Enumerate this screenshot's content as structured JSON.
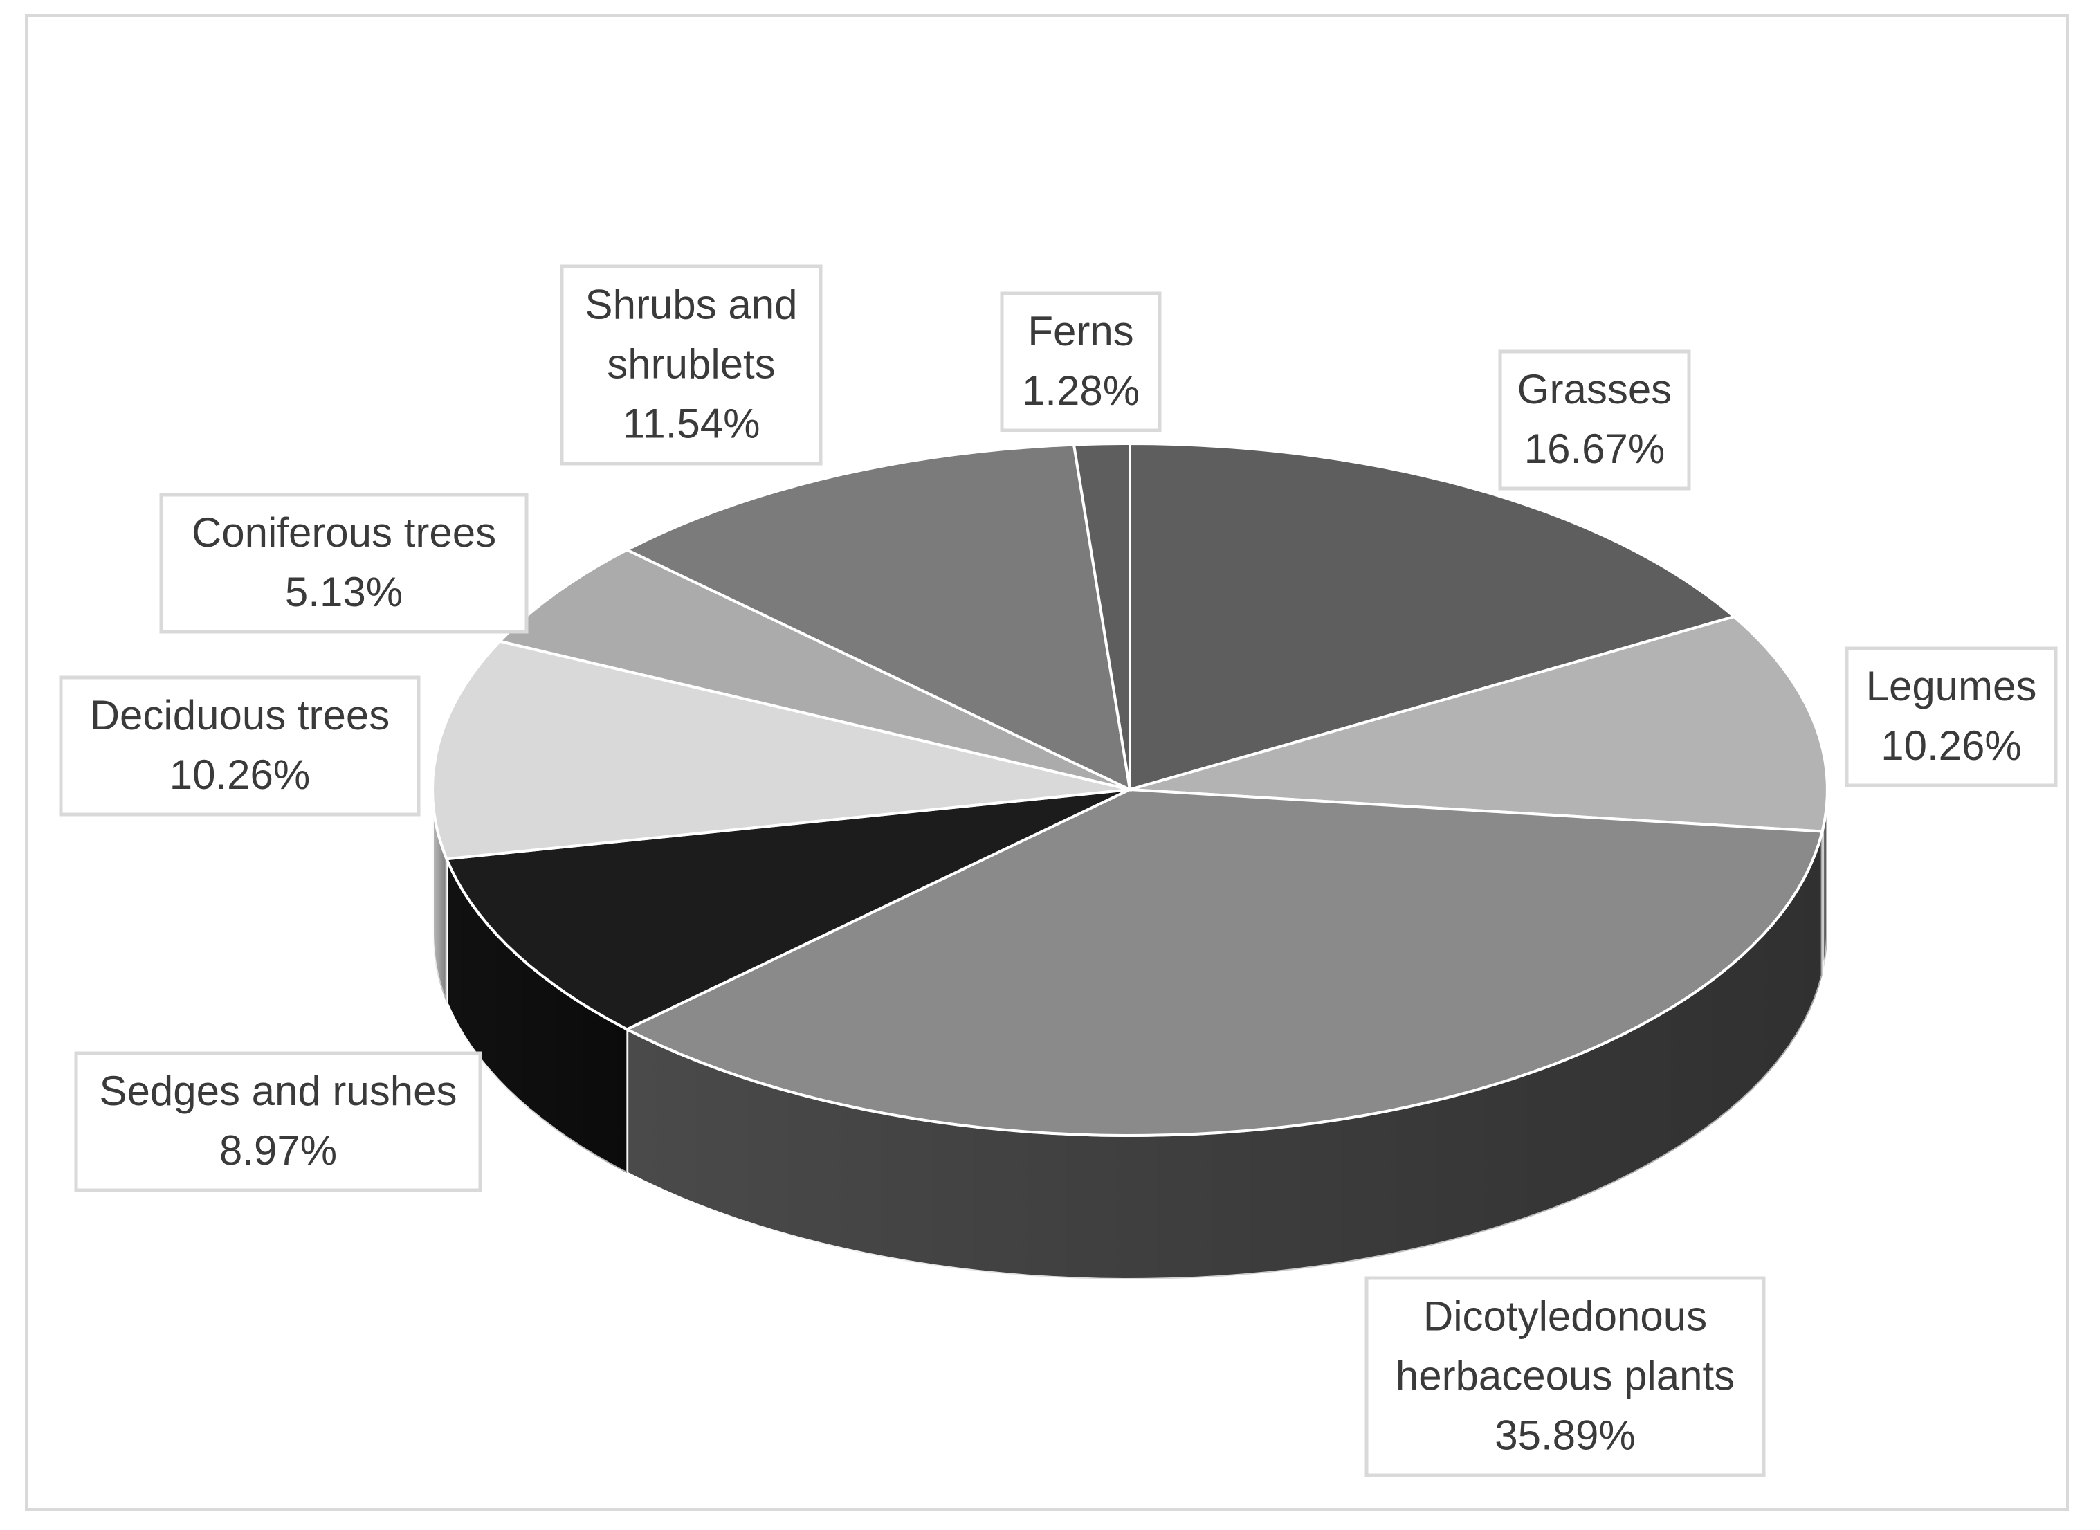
{
  "chart_data": {
    "type": "pie",
    "style": "3d",
    "legend": "none",
    "slices": [
      {
        "name": "Grasses",
        "value": 16.67,
        "label": "16.67%",
        "color": "#5e5e5e",
        "side": "#3c3c3c"
      },
      {
        "name": "Legumes",
        "value": 10.26,
        "label": "10.26%",
        "color": "#b3b3b3",
        "side": "#7a7a7a"
      },
      {
        "name": "Dicotyledonous herbaceous plants",
        "value": 35.89,
        "label": "35.89%",
        "color": "#8a8a8a",
        "side": "#4a4a4a"
      },
      {
        "name": "Sedges and rushes",
        "value": 8.97,
        "label": "8.97%",
        "color": "#1c1c1c",
        "side": "#111111"
      },
      {
        "name": "Deciduous trees",
        "value": 10.26,
        "label": "10.26%",
        "color": "#d9d9d9",
        "side": "#bdbdbd"
      },
      {
        "name": "Coniferous trees",
        "value": 5.13,
        "label": "5.13%",
        "color": "#ababab",
        "side": "#8a8a8a"
      },
      {
        "name": "Shrubs and shrublets",
        "value": 11.54,
        "label": "11.54%",
        "color": "#7b7b7b",
        "side": "#5a5a5a"
      },
      {
        "name": "Ferns",
        "value": 1.28,
        "label": "1.28%",
        "color": "#5e5e5e",
        "side": "#3c3c3c"
      }
    ]
  }
}
